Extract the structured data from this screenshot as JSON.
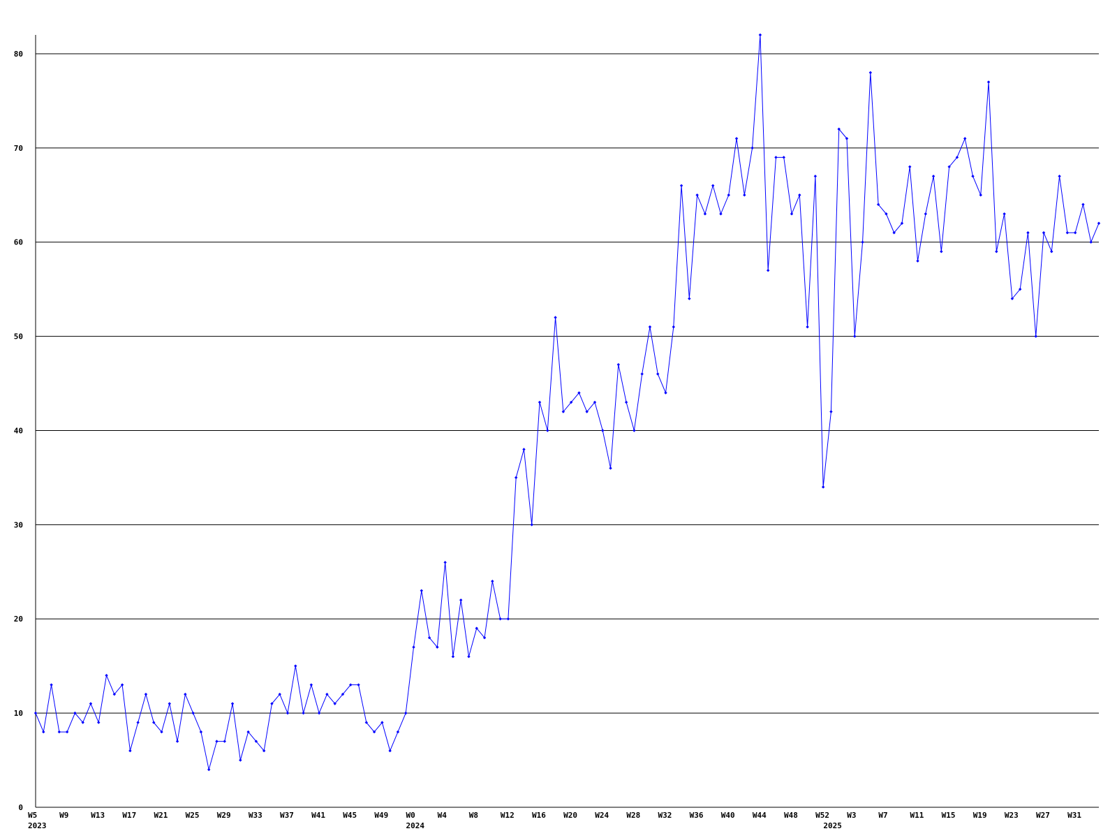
{
  "chart_data": {
    "type": "line",
    "color": "#0000ff",
    "grid": true,
    "ylim": [
      0,
      82
    ],
    "yticks": [
      0,
      10,
      20,
      30,
      40,
      50,
      60,
      70,
      80
    ],
    "categories": [
      "W5",
      null,
      null,
      null,
      "W9",
      null,
      null,
      null,
      "W13",
      null,
      null,
      null,
      "W17",
      null,
      null,
      null,
      "W21",
      null,
      null,
      null,
      "W25",
      null,
      null,
      null,
      "W29",
      null,
      null,
      null,
      "W33",
      null,
      null,
      null,
      "W37",
      null,
      null,
      null,
      "W41",
      null,
      null,
      null,
      "W45",
      null,
      null,
      null,
      "W49",
      null,
      null,
      null,
      "W0",
      null,
      null,
      null,
      "W4",
      null,
      null,
      null,
      "W8",
      null,
      null,
      null,
      "W12",
      null,
      null,
      null,
      "W16",
      null,
      null,
      null,
      "W20",
      null,
      null,
      null,
      "W24",
      null,
      null,
      null,
      "W28",
      null,
      null,
      null,
      "W32",
      null,
      null,
      null,
      "W36",
      null,
      null,
      null,
      "W40",
      null,
      null,
      null,
      "W44",
      null,
      null,
      null,
      "W48",
      null,
      null,
      null,
      "W52",
      null,
      null,
      null,
      "W3",
      null,
      null,
      null,
      "W7",
      null,
      null,
      null,
      "W11",
      null,
      null,
      null,
      "W15",
      null,
      null,
      null,
      "W19",
      null,
      null,
      null,
      "W23",
      null,
      null,
      null,
      "W27",
      null,
      null,
      null,
      "W31",
      null,
      null,
      null
    ],
    "year_labels": [
      "2023",
      null,
      null,
      null,
      null,
      null,
      null,
      null,
      null,
      null,
      null,
      null,
      null,
      null,
      null,
      null,
      null,
      null,
      null,
      null,
      null,
      null,
      null,
      null,
      null,
      null,
      null,
      null,
      null,
      null,
      null,
      null,
      null,
      null,
      null,
      null,
      null,
      null,
      null,
      null,
      null,
      null,
      null,
      null,
      null,
      null,
      null,
      null,
      "2024",
      null,
      null,
      null,
      null,
      null,
      null,
      null,
      null,
      null,
      null,
      null,
      null,
      null,
      null,
      null,
      null,
      null,
      null,
      null,
      null,
      null,
      null,
      null,
      null,
      null,
      null,
      null,
      null,
      null,
      null,
      null,
      null,
      null,
      null,
      null,
      null,
      null,
      null,
      null,
      null,
      null,
      null,
      null,
      null,
      null,
      null,
      null,
      null,
      null,
      null,
      null,
      null,
      "2025",
      null,
      null,
      null,
      null,
      null,
      null,
      null,
      null,
      null,
      null,
      null,
      null,
      null,
      null,
      null,
      null,
      null,
      null,
      null,
      null,
      null,
      null,
      null,
      null,
      null,
      null,
      null,
      null,
      null,
      null,
      null,
      null,
      null,
      null
    ],
    "values": [
      10,
      8,
      13,
      8,
      8,
      10,
      9,
      11,
      9,
      14,
      12,
      13,
      6,
      9,
      12,
      9,
      8,
      11,
      7,
      12,
      10,
      8,
      4,
      7,
      7,
      11,
      5,
      8,
      7,
      6,
      11,
      12,
      10,
      15,
      10,
      13,
      10,
      12,
      11,
      12,
      13,
      13,
      9,
      8,
      9,
      6,
      8,
      10,
      17,
      23,
      18,
      17,
      26,
      16,
      22,
      16,
      19,
      18,
      24,
      20,
      20,
      35,
      38,
      30,
      43,
      40,
      52,
      42,
      43,
      44,
      42,
      43,
      40,
      36,
      47,
      43,
      40,
      46,
      51,
      46,
      44,
      51,
      66,
      54,
      65,
      63,
      66,
      63,
      65,
      71,
      65,
      70,
      82,
      57,
      69,
      69,
      63,
      65,
      51,
      67,
      34,
      42,
      72,
      71,
      50,
      60,
      78,
      64,
      63,
      61,
      62,
      68,
      58,
      63,
      67,
      59,
      68,
      69,
      71,
      67,
      65,
      77,
      59,
      63,
      54,
      55,
      61,
      50,
      61,
      59,
      67,
      61,
      61,
      64,
      60,
      62
    ]
  }
}
